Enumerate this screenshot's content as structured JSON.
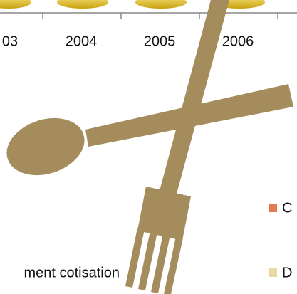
{
  "axis": {
    "labels": [
      "03",
      "2004",
      "2005",
      "2006"
    ]
  },
  "legend": {
    "items": [
      "C",
      "D"
    ]
  },
  "annotation": "ment cotisation"
}
